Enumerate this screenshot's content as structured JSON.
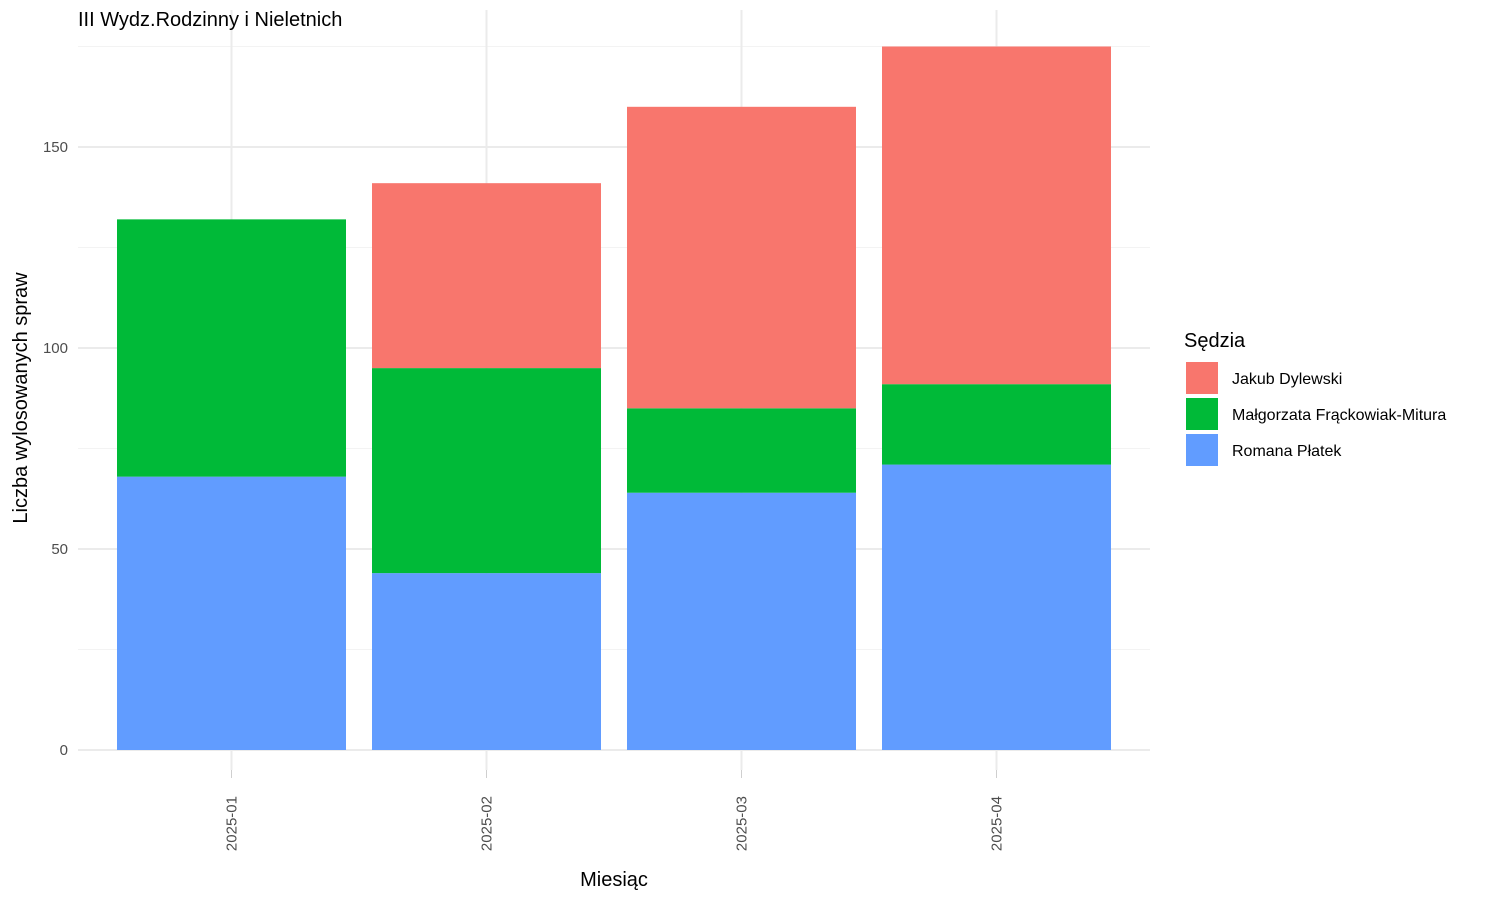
{
  "chart_data": {
    "type": "bar",
    "stacked": true,
    "title": "III Wydz.Rodzinny i Nieletnich",
    "xlabel": "Miesiąc",
    "ylabel": "Liczba wylosowanych spraw",
    "categories": [
      "2025-01",
      "2025-02",
      "2025-03",
      "2025-04"
    ],
    "ylim": [
      0,
      183
    ],
    "yticks": [
      0,
      50,
      100,
      150
    ],
    "grid": true,
    "legend": {
      "title": "Sędzia",
      "position": "right"
    },
    "stack_order_bottom_to_top": [
      "Romana Płatek",
      "Małgorzata Frąckowiak-Mitura",
      "Jakub Dylewski"
    ],
    "series": [
      {
        "name": "Jakub Dylewski",
        "color": "#F8766D",
        "values": [
          0,
          46,
          75,
          84
        ]
      },
      {
        "name": "Małgorzata Frąckowiak-Mitura",
        "color": "#00BA38",
        "values": [
          64,
          51,
          21,
          20
        ]
      },
      {
        "name": "Romana Płatek",
        "color": "#619CFF",
        "values": [
          68,
          44,
          64,
          71
        ]
      }
    ]
  }
}
